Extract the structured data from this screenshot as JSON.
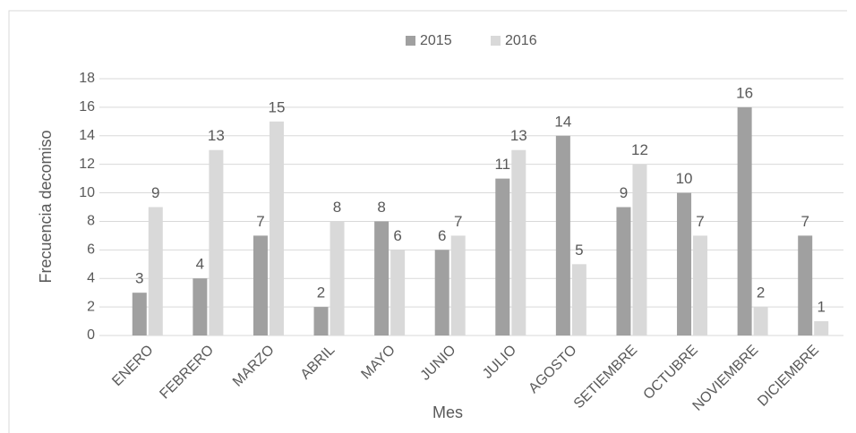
{
  "chart_data": {
    "type": "bar",
    "categories": [
      "ENERO",
      "FEBRERO",
      "MARZO",
      "ABRIL",
      "MAYO",
      "JUNIO",
      "JULIO",
      "AGOSTO",
      "SETIEMBRE",
      "OCTUBRE",
      "NOVIEMBRE",
      "DICIEMBRE"
    ],
    "series": [
      {
        "name": "2015",
        "color": "#a0a0a0",
        "values": [
          3,
          4,
          7,
          2,
          8,
          6,
          11,
          14,
          9,
          10,
          16,
          7
        ]
      },
      {
        "name": "2016",
        "color": "#d9d9d9",
        "values": [
          9,
          13,
          15,
          8,
          6,
          7,
          13,
          5,
          12,
          7,
          2,
          1
        ]
      }
    ],
    "ylabel": "Frecuencia decomiso",
    "xlabel": "Mes",
    "ylim": [
      0,
      18
    ],
    "yticks": [
      0,
      2,
      4,
      6,
      8,
      10,
      12,
      14,
      16,
      18
    ],
    "grid": true,
    "legend": "top"
  }
}
